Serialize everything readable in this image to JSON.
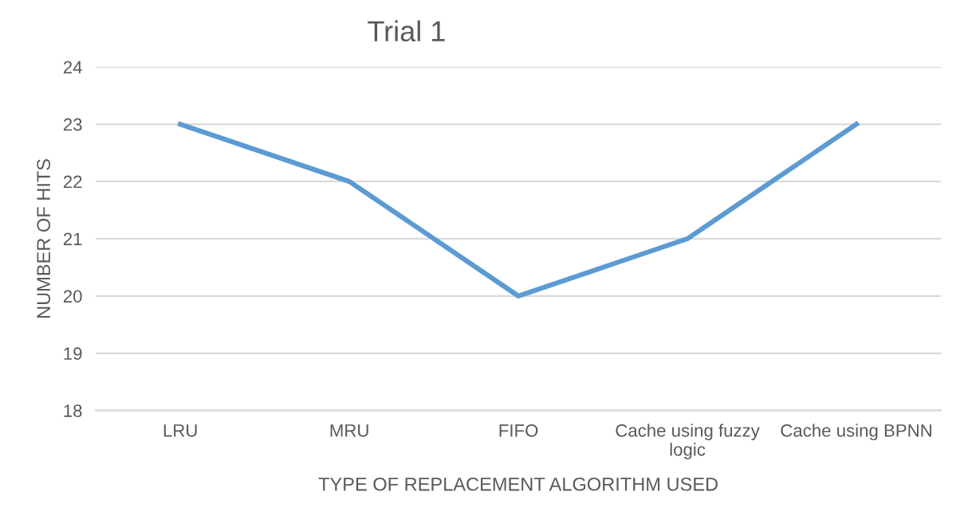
{
  "chart_data": {
    "type": "line",
    "title": "Trial 1",
    "xlabel": "TYPE OF REPLACEMENT ALGORITHM USED",
    "ylabel": "NUMBER OF HITS",
    "categories": [
      "LRU",
      "MRU",
      "FIFO",
      "Cache using fuzzy\nlogic",
      "Cache using BPNN"
    ],
    "series": [
      {
        "color": "#5b9bd5",
        "values": [
          23,
          22,
          20,
          21,
          23
        ]
      }
    ],
    "ylim": [
      18,
      24
    ],
    "yticks": [
      18,
      19,
      20,
      21,
      22,
      23,
      24
    ],
    "grid": "y",
    "legend": false,
    "marker": "none",
    "line_style": "solid"
  }
}
